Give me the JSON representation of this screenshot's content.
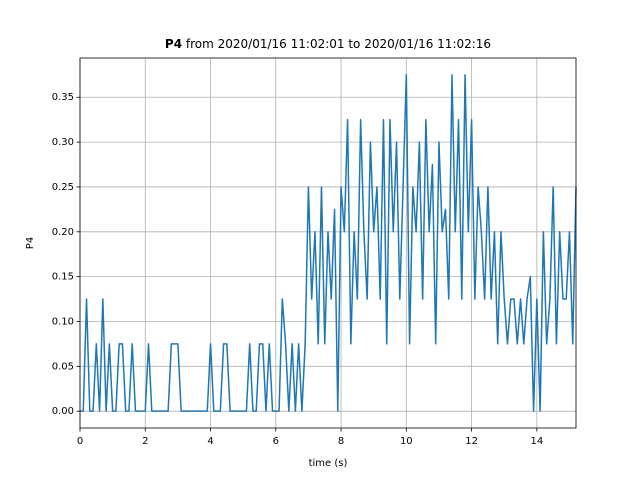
{
  "chart_data": {
    "type": "line",
    "title_variable": "P4",
    "title": "from 2020/01/16 11:02:01 to 2020/01/16 11:02:16",
    "xlabel": "time (s)",
    "ylabel": "P4",
    "color": "#1f77b4",
    "grid": true,
    "xlim": [
      0,
      15.2
    ],
    "ylim": [
      -0.01875,
      0.39375
    ],
    "xticks": [
      0,
      2,
      4,
      6,
      8,
      10,
      12,
      14
    ],
    "yticks": [
      {
        "value": 0,
        "label": "0.00"
      },
      {
        "value": 0.05,
        "label": "0.05"
      },
      {
        "value": 0.1,
        "label": "0.10"
      },
      {
        "value": 0.15,
        "label": "0.15"
      },
      {
        "value": 0.2,
        "label": "0.20"
      },
      {
        "value": 0.25,
        "label": "0.25"
      },
      {
        "value": 0.3,
        "label": "0.30"
      },
      {
        "value": 0.35,
        "label": "0.35"
      }
    ],
    "x": [
      0,
      0.1,
      0.2,
      0.3,
      0.4,
      0.5,
      0.6,
      0.7,
      0.8,
      0.9,
      1,
      1.1,
      1.2,
      1.3,
      1.4,
      1.5,
      1.6,
      1.7,
      1.8,
      1.9,
      2,
      2.1,
      2.2,
      2.3,
      2.4,
      2.5,
      2.6,
      2.7,
      2.8,
      2.9,
      3,
      3.1,
      3.2,
      3.3,
      3.4,
      3.5,
      3.6,
      3.7,
      3.8,
      3.9,
      4,
      4.1,
      4.2,
      4.3,
      4.4,
      4.5,
      4.6,
      4.7,
      4.8,
      4.9,
      5,
      5.1,
      5.2,
      5.3,
      5.4,
      5.5,
      5.6,
      5.7,
      5.8,
      5.9,
      6,
      6.1,
      6.2,
      6.3,
      6.4,
      6.5,
      6.6,
      6.7,
      6.8,
      6.9,
      7,
      7.1,
      7.2,
      7.3,
      7.4,
      7.5,
      7.6,
      7.7,
      7.8,
      7.9,
      8,
      8.1,
      8.2,
      8.3,
      8.4,
      8.5,
      8.6,
      8.7,
      8.8,
      8.9,
      9,
      9.1,
      9.2,
      9.3,
      9.4,
      9.5,
      9.6,
      9.7,
      9.8,
      9.9,
      10,
      10.1,
      10.2,
      10.3,
      10.4,
      10.5,
      10.6,
      10.7,
      10.8,
      10.9,
      11,
      11.1,
      11.2,
      11.3,
      11.4,
      11.5,
      11.6,
      11.7,
      11.8,
      11.9,
      12,
      12.1,
      12.2,
      12.3,
      12.4,
      12.5,
      12.6,
      12.7,
      12.8,
      12.9,
      13,
      13.1,
      13.2,
      13.3,
      13.4,
      13.5,
      13.6,
      13.7,
      13.8,
      13.9,
      14,
      14.1,
      14.2,
      14.3,
      14.4,
      14.5,
      14.6,
      14.7,
      14.8,
      14.9,
      15,
      15.1,
      15.2
    ],
    "values": [
      0,
      0,
      0.125,
      0,
      0,
      0.075,
      0,
      0.125,
      0,
      0.075,
      0,
      0,
      0.075,
      0.075,
      0,
      0,
      0.075,
      0,
      0,
      0,
      0,
      0.075,
      0,
      0,
      0,
      0,
      0,
      0,
      0.075,
      0.075,
      0.075,
      0,
      0,
      0,
      0,
      0,
      0,
      0,
      0,
      0,
      0.075,
      0,
      0,
      0,
      0.075,
      0.075,
      0,
      0,
      0,
      0,
      0,
      0,
      0.075,
      0,
      0,
      0.075,
      0.075,
      0,
      0.075,
      0,
      0,
      0,
      0.125,
      0.075,
      0,
      0.075,
      0,
      0.075,
      0,
      0.075,
      0.25,
      0.125,
      0.2,
      0.075,
      0.25,
      0.075,
      0.2,
      0.125,
      0.225,
      0,
      0.25,
      0.2,
      0.325,
      0.075,
      0.2,
      0.125,
      0.325,
      0.2,
      0.125,
      0.3,
      0.2,
      0.25,
      0.125,
      0.325,
      0.075,
      0.325,
      0.2,
      0.3,
      0.125,
      0.25,
      0.375,
      0.075,
      0.25,
      0.2,
      0.3,
      0.125,
      0.325,
      0.2,
      0.275,
      0.075,
      0.3,
      0.2,
      0.225,
      0.125,
      0.375,
      0.2,
      0.325,
      0.125,
      0.375,
      0.2,
      0.325,
      0.125,
      0.25,
      0.2,
      0.125,
      0.25,
      0.125,
      0.2,
      0.075,
      0.2,
      0.125,
      0.075,
      0.125,
      0.125,
      0.075,
      0.125,
      0.075,
      0.125,
      0.15,
      0,
      0.125,
      0,
      0.2,
      0.075,
      0.125,
      0.25,
      0.075,
      0.2,
      0.125,
      0.125,
      0.2,
      0.075,
      0.25
    ]
  }
}
